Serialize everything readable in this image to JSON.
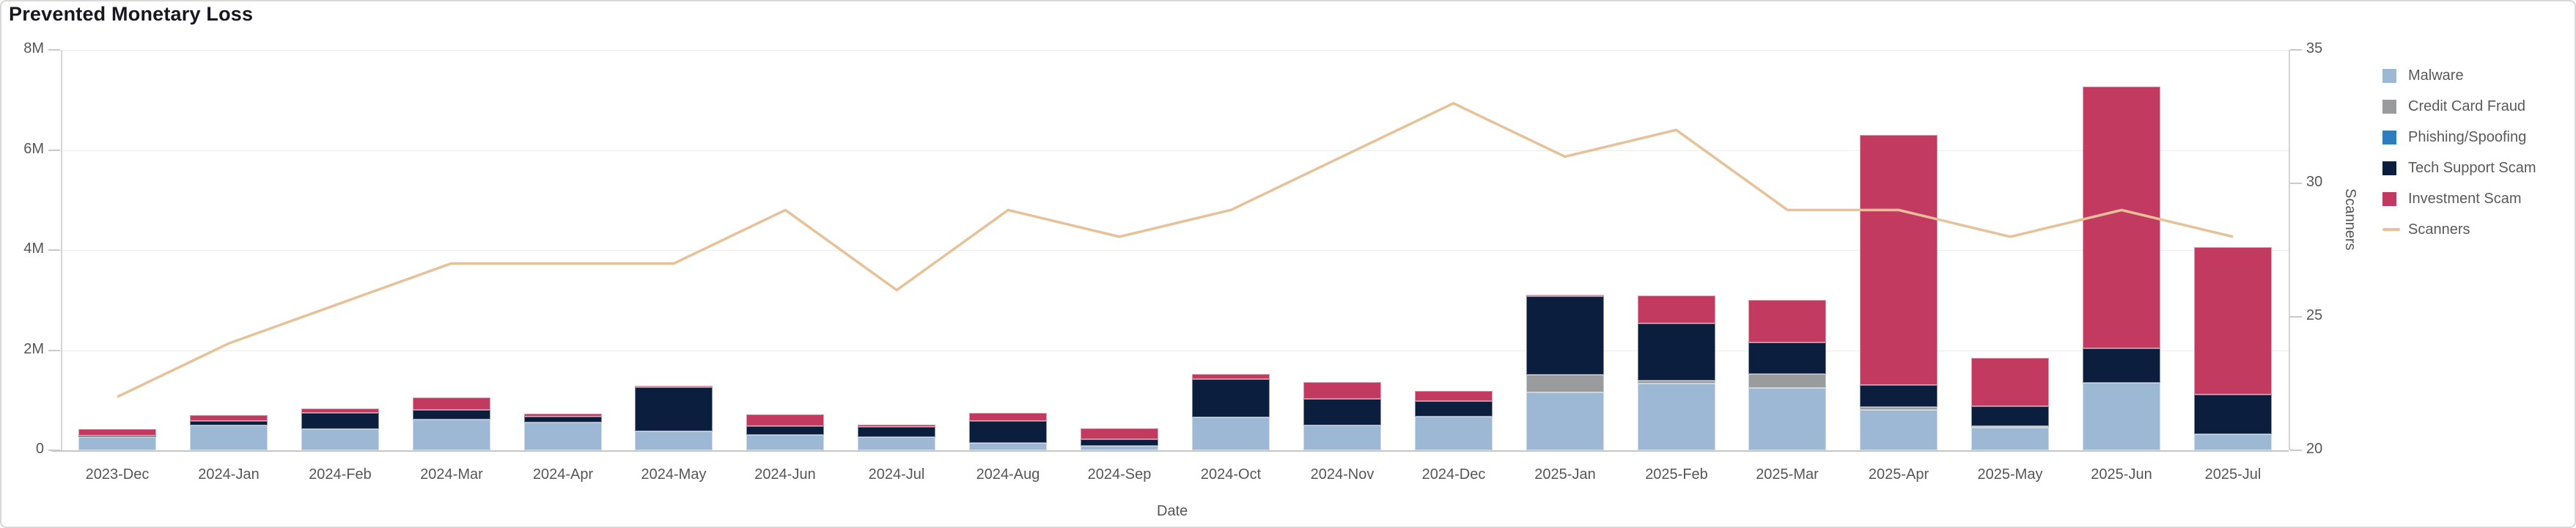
{
  "card": {
    "title": "Prevented Monetary Loss"
  },
  "chart_data": {
    "type": "bar",
    "subtype": "stacked-bar-with-line",
    "title": "Prevented Monetary Loss",
    "categories": [
      "2023-Dec",
      "2024-Jan",
      "2024-Feb",
      "2024-Mar",
      "2024-Apr",
      "2024-May",
      "2024-Jun",
      "2024-Jul",
      "2024-Aug",
      "2024-Sep",
      "2024-Oct",
      "2024-Nov",
      "2024-Dec",
      "2025-Jan",
      "2025-Feb",
      "2025-Mar",
      "2025-Apr",
      "2025-May",
      "2025-Jun",
      "2025-Jul"
    ],
    "value_unit": "M (millions)",
    "series": [
      {
        "name": "Malware",
        "type": "bar",
        "color": "#9cb8d5",
        "values": [
          0.26,
          0.5,
          0.42,
          0.62,
          0.56,
          0.38,
          0.31,
          0.26,
          0.14,
          0.09,
          0.66,
          0.5,
          0.67,
          1.16,
          1.34,
          1.25,
          0.81,
          0.46,
          1.35,
          0.32
        ]
      },
      {
        "name": "Credit Card Fraud",
        "type": "bar",
        "color": "#999b9d",
        "values": [
          0,
          0,
          0,
          0,
          0,
          0,
          0,
          0,
          0,
          0,
          0,
          0,
          0,
          0.35,
          0.05,
          0.27,
          0.05,
          0.03,
          0,
          0
        ]
      },
      {
        "name": "Phishing/Spoofing",
        "type": "bar",
        "color": "#2e7dbe",
        "values": [
          0,
          0,
          0,
          0,
          0,
          0,
          0,
          0,
          0,
          0,
          0,
          0,
          0,
          0,
          0,
          0,
          0,
          0,
          0,
          0
        ]
      },
      {
        "name": "Tech Support Scam",
        "type": "bar",
        "color": "#0c1e3d",
        "values": [
          0.04,
          0.08,
          0.32,
          0.19,
          0.12,
          0.88,
          0.18,
          0.21,
          0.45,
          0.13,
          0.76,
          0.53,
          0.31,
          1.56,
          1.14,
          0.63,
          0.45,
          0.39,
          0.68,
          0.79
        ]
      },
      {
        "name": "Investment Scam",
        "type": "bar",
        "color": "#c23a60",
        "values": [
          0.13,
          0.13,
          0.09,
          0.24,
          0.05,
          0.03,
          0.23,
          0.05,
          0.15,
          0.22,
          0.1,
          0.33,
          0.2,
          0.04,
          0.56,
          0.86,
          4.99,
          0.97,
          5.24,
          2.95
        ]
      },
      {
        "name": "Scanners",
        "type": "line",
        "axis": "right",
        "color": "#e7c298",
        "values": [
          22,
          24,
          25.5,
          27,
          27,
          27,
          29,
          26,
          29,
          28,
          29,
          31,
          33,
          31,
          32,
          29,
          29,
          28,
          29,
          28
        ]
      }
    ],
    "left_axis": {
      "min": 0,
      "max": 8,
      "ticks": [
        "0",
        "2M",
        "4M",
        "6M",
        "8M"
      ],
      "tick_values": [
        0,
        2,
        4,
        6,
        8
      ]
    },
    "right_axis": {
      "title": "Scanners",
      "min": 20,
      "max": 35,
      "ticks": [
        "20",
        "25",
        "30",
        "35"
      ],
      "tick_values": [
        20,
        25,
        30,
        35
      ]
    },
    "x_axis": {
      "title": "Date"
    },
    "legend_position": "right",
    "grid": true,
    "legend": [
      {
        "label": "Malware",
        "swatch": "square",
        "color": "#9cb8d5"
      },
      {
        "label": "Credit Card Fraud",
        "swatch": "square",
        "color": "#999b9d"
      },
      {
        "label": "Phishing/Spoofing",
        "swatch": "square",
        "color": "#2e7dbe"
      },
      {
        "label": "Tech Support Scam",
        "swatch": "square",
        "color": "#0c1e3d"
      },
      {
        "label": "Investment Scam",
        "swatch": "square",
        "color": "#c23a60"
      },
      {
        "label": "Scanners",
        "swatch": "dash",
        "color": "#e7c298"
      }
    ]
  },
  "colors": {
    "grid": "#ececec",
    "axis_line": "#d4d4d4",
    "baseline": "#c6c6c6",
    "tick_text": "#565656",
    "title_text": "#17171f",
    "card_border": "#d8d8d8",
    "background": "#ffffff"
  }
}
